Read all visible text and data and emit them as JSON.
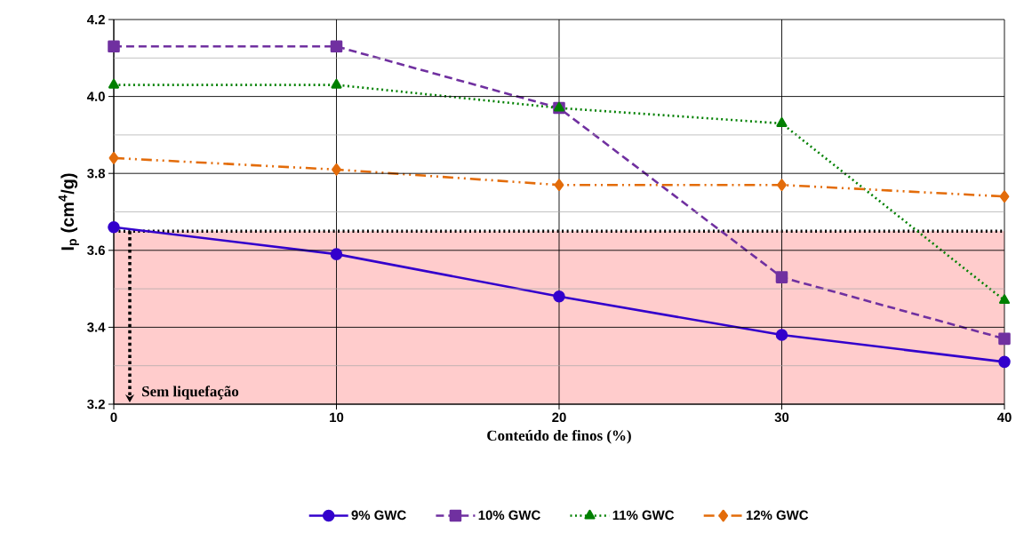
{
  "chart_data": {
    "type": "line",
    "xlabel": "Conteúdo de finos (%)",
    "ylabel": "I$_{p}$ (cm$^{4}$/g)",
    "x": [
      0,
      10,
      20,
      30,
      40
    ],
    "series": [
      {
        "name": "9% GWC",
        "color": "#3300cc",
        "values": [
          3.66,
          3.59,
          3.48,
          3.38,
          3.31
        ],
        "marker": "circle",
        "line_style": "solid"
      },
      {
        "name": "10% GWC",
        "color": "#7030a0",
        "values": [
          4.13,
          4.13,
          3.97,
          3.53,
          3.37
        ],
        "marker": "square",
        "line_style": "dashed"
      },
      {
        "name": "11% GWC",
        "color": "#008000",
        "values": [
          4.03,
          4.03,
          3.97,
          3.93,
          3.47
        ],
        "marker": "triangle",
        "line_style": "dotted"
      },
      {
        "name": "12% GWC",
        "color": "#e36c0a",
        "values": [
          3.84,
          3.81,
          3.77,
          3.77,
          3.74
        ],
        "marker": "diamond",
        "line_style": "dashdotdotted"
      }
    ],
    "xlim": [
      0,
      40
    ],
    "ylim": [
      3.2,
      4.2
    ],
    "xticks": [
      0,
      10,
      20,
      30,
      40
    ],
    "yticks": [
      3.2,
      {
        "value": 3.3,
        "label": null
      },
      3.4,
      {
        "value": 3.5,
        "label": null
      },
      3.6,
      {
        "value": 3.7,
        "label": null
      },
      3.8,
      {
        "value": 3.9,
        "label": null
      },
      {
        "value": 4,
        "label": "4.0"
      },
      {
        "value": 4.1,
        "label": null
      },
      4.2
    ],
    "bands": [
      {
        "axis": "y",
        "from": 3.2,
        "to": 3.65,
        "label": "Sem liquefação",
        "color": "#ffcccc"
      }
    ],
    "ref_lines": [
      {
        "axis": "y",
        "value": 3.65,
        "color": "#000000",
        "line_style": "dotted"
      }
    ],
    "grid": true,
    "legend": "bottom"
  }
}
